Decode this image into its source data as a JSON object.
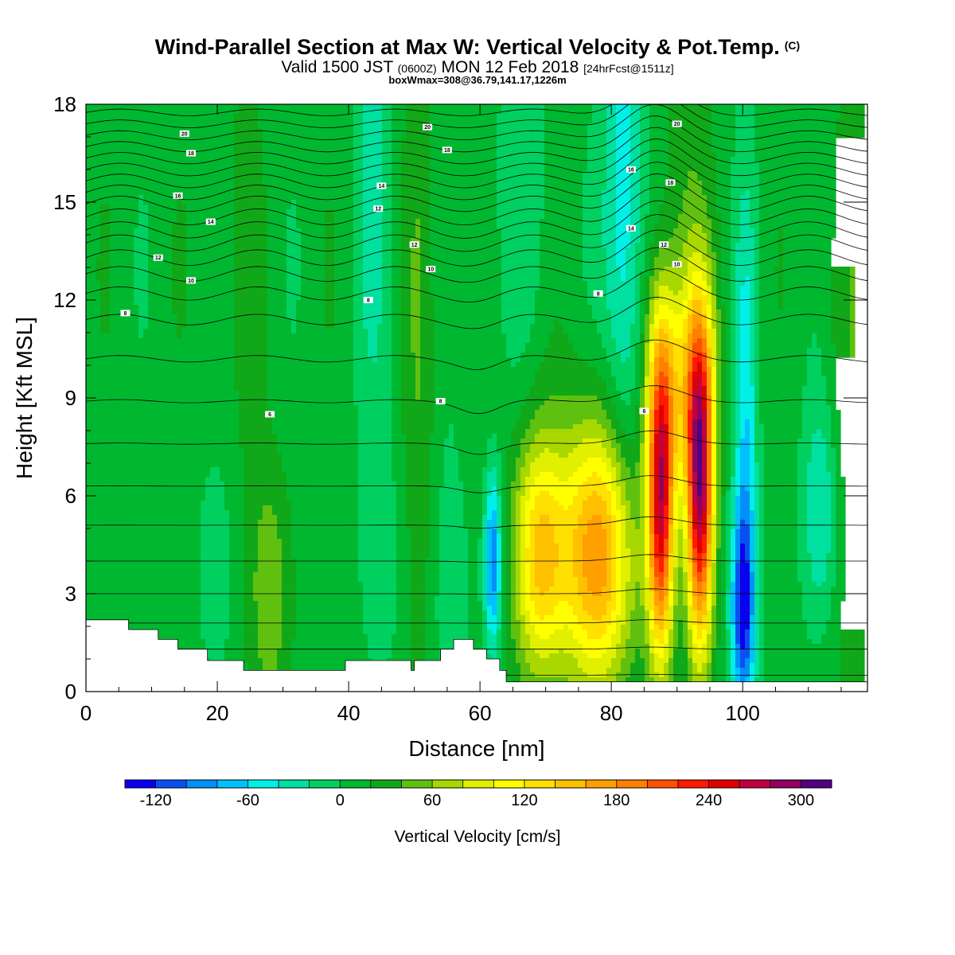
{
  "title": {
    "main": "Wind-Parallel Section at Max W: Vertical Velocity & Pot.Temp.",
    "copyright": "(C)",
    "valid_prefix": "Valid 1500 JST",
    "valid_z": "(0600Z)",
    "valid_date": "MON 12 Feb 2018",
    "forecast": "[24hrFcst@1511z]",
    "box_info": "boxWmax=308@36.79,141.17,1226m"
  },
  "chart_data": {
    "type": "heatmap",
    "xlabel": "Distance [nm]",
    "ylabel": "Height [Kft MSL]",
    "xlim": [
      0,
      119
    ],
    "ylim": [
      0,
      18
    ],
    "xticks": [
      0,
      20,
      40,
      60,
      80,
      100
    ],
    "yticks": [
      0,
      3,
      6,
      9,
      12,
      15,
      18
    ],
    "colorbar": {
      "label": "Vertical Velocity [cm/s]",
      "ticks": [
        -120,
        -60,
        0,
        60,
        120,
        180,
        240,
        300
      ],
      "levels": [
        -140,
        -120,
        -100,
        -80,
        -60,
        -40,
        -20,
        0,
        20,
        40,
        60,
        80,
        100,
        120,
        140,
        160,
        180,
        200,
        220,
        240,
        260,
        280,
        300,
        320
      ],
      "colors": [
        "#0a00f0",
        "#0a50f0",
        "#0090f8",
        "#00c0ff",
        "#00f0e8",
        "#00e0a0",
        "#00d060",
        "#00b830",
        "#10a818",
        "#60c010",
        "#a8d800",
        "#e0f000",
        "#ffff00",
        "#ffe000",
        "#ffc000",
        "#ffa000",
        "#ff8000",
        "#ff5000",
        "#ff1a00",
        "#e00000",
        "#c00040",
        "#900060",
        "#500080"
      ]
    },
    "terrain_profile": [
      [
        0,
        2.2
      ],
      [
        6.5,
        2.2
      ],
      [
        6.5,
        1.9
      ],
      [
        11,
        1.9
      ],
      [
        11,
        1.6
      ],
      [
        14,
        1.6
      ],
      [
        14,
        1.3
      ],
      [
        18.5,
        1.3
      ],
      [
        18.5,
        0.95
      ],
      [
        24,
        0.95
      ],
      [
        24,
        0.65
      ],
      [
        39.5,
        0.65
      ],
      [
        39.5,
        0.95
      ],
      [
        49.5,
        0.95
      ],
      [
        49.5,
        0.65
      ],
      [
        50,
        0.65
      ],
      [
        50,
        0.95
      ],
      [
        54,
        0.95
      ],
      [
        54,
        1.3
      ],
      [
        56,
        1.3
      ],
      [
        56,
        1.6
      ],
      [
        59,
        1.6
      ],
      [
        59,
        1.3
      ],
      [
        61,
        1.3
      ],
      [
        61,
        1.0
      ],
      [
        63,
        1.0
      ],
      [
        63,
        0.65
      ],
      [
        64,
        0.65
      ],
      [
        64,
        0.3
      ],
      [
        119,
        0.3
      ]
    ],
    "velocity_features": [
      {
        "x": 0,
        "y": 9,
        "sx": 200,
        "sy": 40,
        "w": 10
      },
      {
        "x": 28,
        "y": 3,
        "sx": 2.2,
        "sy": 2.8,
        "w": 45
      },
      {
        "x": 20,
        "y": 3.8,
        "sx": 2.2,
        "sy": 2.6,
        "w": -25
      },
      {
        "x": 23,
        "y": 13,
        "sx": 3,
        "sy": 8,
        "w": 12
      },
      {
        "x": 44,
        "y": 16,
        "sx": 2,
        "sy": 6,
        "w": -35
      },
      {
        "x": 45,
        "y": 4,
        "sx": 2.2,
        "sy": 2.5,
        "w": -22
      },
      {
        "x": 51,
        "y": 10,
        "sx": 1.8,
        "sy": 9,
        "w": 30
      },
      {
        "x": 55,
        "y": 3,
        "sx": 2.5,
        "sy": 3.5,
        "w": -22
      },
      {
        "x": 67,
        "y": 16,
        "sx": 3.5,
        "sy": 4,
        "w": -20
      },
      {
        "x": 62,
        "y": 4,
        "sx": 0.9,
        "sy": 1.9,
        "w": -110
      },
      {
        "x": 69,
        "y": 4.2,
        "sx": 2.8,
        "sy": 2.6,
        "w": 130
      },
      {
        "x": 78,
        "y": 4.2,
        "sx": 4,
        "sy": 2.9,
        "w": 170
      },
      {
        "x": 82,
        "y": 15,
        "sx": 2.2,
        "sy": 7,
        "w": -65
      },
      {
        "x": 87.5,
        "y": 5.5,
        "sx": 1.4,
        "sy": 3.2,
        "w": 230
      },
      {
        "x": 88,
        "y": 9.5,
        "sx": 2,
        "sy": 2.5,
        "w": 100
      },
      {
        "x": 93.5,
        "y": 5.8,
        "sx": 1.4,
        "sy": 3.3,
        "w": 245
      },
      {
        "x": 93,
        "y": 9.5,
        "sx": 2,
        "sy": 2.5,
        "w": 110
      },
      {
        "x": 91,
        "y": 16,
        "sx": 2.5,
        "sy": 6,
        "w": 25
      },
      {
        "x": 100,
        "y": 2.5,
        "sx": 1.3,
        "sy": 2.4,
        "w": -120
      },
      {
        "x": 100.5,
        "y": 8,
        "sx": 1.2,
        "sy": 5,
        "w": -60
      },
      {
        "x": 112,
        "y": 5.5,
        "sx": 2,
        "sy": 2.5,
        "w": -55
      },
      {
        "x": 116,
        "y": 8,
        "sx": 3,
        "sy": 8,
        "w": 25
      }
    ],
    "theta_base_heights": [
      0.5,
      1.3,
      2.1,
      3,
      4,
      5.1,
      6.3,
      7.6,
      8.9,
      10.2,
      11.4,
      12.2,
      12.8,
      13.3,
      13.75,
      14.15,
      14.55,
      14.95,
      15.3,
      15.65,
      16.0,
      16.35,
      16.7,
      17.05,
      17.4,
      17.75
    ],
    "theta_labels": [
      {
        "text": "20",
        "x": 15,
        "y": 17.1
      },
      {
        "text": "18",
        "x": 16,
        "y": 16.5
      },
      {
        "text": "16",
        "x": 14,
        "y": 15.2
      },
      {
        "text": "14",
        "x": 19,
        "y": 14.4
      },
      {
        "text": "12",
        "x": 11,
        "y": 13.3
      },
      {
        "text": "10",
        "x": 16,
        "y": 12.6
      },
      {
        "text": "8",
        "x": 6,
        "y": 11.6
      },
      {
        "text": "6",
        "x": 28,
        "y": 8.5
      },
      {
        "text": "8",
        "x": 54,
        "y": 8.9
      },
      {
        "text": "8",
        "x": 43,
        "y": 12.0
      },
      {
        "text": "14",
        "x": 45,
        "y": 15.5
      },
      {
        "text": "12",
        "x": 44.5,
        "y": 14.8
      },
      {
        "text": "12",
        "x": 50,
        "y": 13.7
      },
      {
        "text": "10",
        "x": 52.5,
        "y": 12.95
      },
      {
        "text": "20",
        "x": 52,
        "y": 17.3
      },
      {
        "text": "18",
        "x": 55,
        "y": 16.6
      },
      {
        "text": "16",
        "x": 83,
        "y": 16.0
      },
      {
        "text": "14",
        "x": 83,
        "y": 14.2
      },
      {
        "text": "8",
        "x": 78,
        "y": 12.2
      },
      {
        "text": "20",
        "x": 90,
        "y": 17.4
      },
      {
        "text": "18",
        "x": 89,
        "y": 15.6
      },
      {
        "text": "12",
        "x": 88,
        "y": 13.7
      },
      {
        "text": "10",
        "x": 90,
        "y": 13.1
      },
      {
        "text": "6",
        "x": 85,
        "y": 8.6
      }
    ]
  }
}
